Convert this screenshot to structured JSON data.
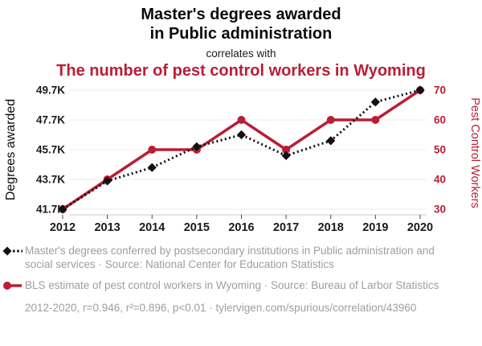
{
  "header": {
    "title": "Master's degrees awarded\nin Public administration",
    "subtitle": "correlates with",
    "red_title": "The number of pest control workers in Wyoming"
  },
  "colors": {
    "black_series": "#111111",
    "red_series": "#ba1e35",
    "title_black": "#0b0b0b",
    "legend_gray": "#9e9e9e",
    "gridline": "#ececec",
    "axis_line": "#c8c8c8",
    "tick_mark": "#444444",
    "tick_label_dark": "#1a1a1a"
  },
  "chart_data": {
    "type": "line",
    "x": [
      "2012",
      "2013",
      "2014",
      "2015",
      "2016",
      "2017",
      "2018",
      "2019",
      "2020"
    ],
    "series": [
      {
        "name": "Master's degrees conferred in Public administration",
        "axis": "left",
        "marker": "diamond",
        "line": "dotted",
        "color": "#111111",
        "values": [
          41.7,
          43.6,
          44.5,
          45.9,
          46.7,
          45.3,
          46.3,
          48.9,
          49.7
        ],
        "unit": "K degrees"
      },
      {
        "name": "Pest control workers in Wyoming",
        "axis": "right",
        "marker": "circle",
        "line": "solid",
        "color": "#ba1e35",
        "values": [
          30,
          40,
          50,
          50,
          60,
          50,
          60,
          60,
          70
        ],
        "unit": "workers"
      }
    ],
    "left_axis": {
      "label": "Degrees awarded",
      "ticks": [
        "41.7K",
        "43.7K",
        "45.7K",
        "47.7K",
        "49.7K"
      ],
      "range": [
        41.7,
        49.7
      ]
    },
    "right_axis": {
      "label": "Pest Control Workers",
      "ticks": [
        "30",
        "40",
        "50",
        "60",
        "70"
      ],
      "range": [
        30,
        70
      ]
    },
    "grid": true,
    "legend_position": "bottom"
  },
  "legend": {
    "items": [
      {
        "series": "degrees",
        "text": "Master's degrees conferred by postsecondary institutions in Public administration and social services · Source: National Center for Education Statistics"
      },
      {
        "series": "pest-control",
        "text": "BLS estimate of pest control workers in Wyoming · Source: Bureau of Larbor Statistics"
      }
    ],
    "footer": "2012-2020, r=0.946, r²=0.896, p<0.01 · tylervigen.com/spurious/correlation/43960"
  }
}
